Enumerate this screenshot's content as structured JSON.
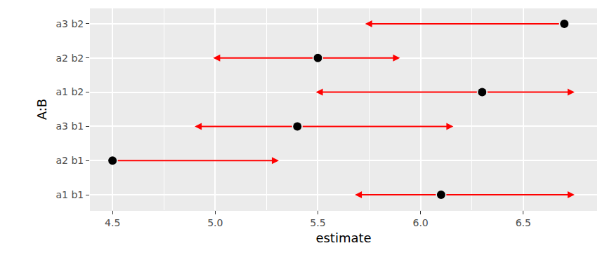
{
  "chart_data": {
    "type": "scatter",
    "orientation": "horizontal",
    "x_label": "estimate",
    "y_label": "A:B",
    "categories": [
      "a1 b1",
      "a2 b1",
      "a3 b1",
      "a1 b2",
      "a2 b2",
      "a3 b2"
    ],
    "values": [
      6.1,
      4.5,
      5.4,
      6.3,
      5.5,
      6.7
    ],
    "arrow_low": [
      5.68,
      null,
      4.9,
      5.49,
      4.99,
      5.73
    ],
    "arrow_high": [
      6.75,
      5.31,
      6.16,
      6.75,
      5.9,
      null
    ],
    "color": "#000000",
    "xlim": [
      4.39,
      6.86
    ],
    "xticks": [
      4.5,
      {
        "value": 5,
        "label": "5.0"
      },
      5.5,
      {
        "value": 6,
        "label": "6.0"
      },
      6.5
    ],
    "grid": true
  }
}
